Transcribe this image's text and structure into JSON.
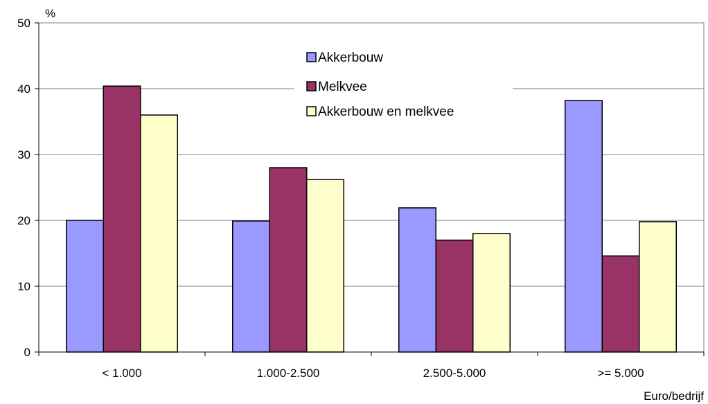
{
  "chart_data": {
    "type": "bar",
    "categories": [
      "< 1.000",
      "1.000-2.500",
      "2.500-5.000",
      ">= 5.000"
    ],
    "series": [
      {
        "name": "Akkerbouw",
        "values": [
          20,
          19.9,
          21.9,
          38.2
        ],
        "color": "#9999ff"
      },
      {
        "name": "Melkvee",
        "values": [
          40.4,
          28,
          17,
          14.6
        ],
        "color": "#993366"
      },
      {
        "name": "Akkerbouw en melkvee",
        "values": [
          36,
          26.2,
          18,
          19.8
        ],
        "color": "#ffffcc"
      }
    ],
    "ylim": [
      0,
      50
    ],
    "yticks": [
      0,
      10,
      20,
      30,
      40,
      50
    ],
    "ylabel": "%",
    "xlabel": "Euro/bedrijf",
    "grid": true,
    "legend_position": "top-center"
  }
}
